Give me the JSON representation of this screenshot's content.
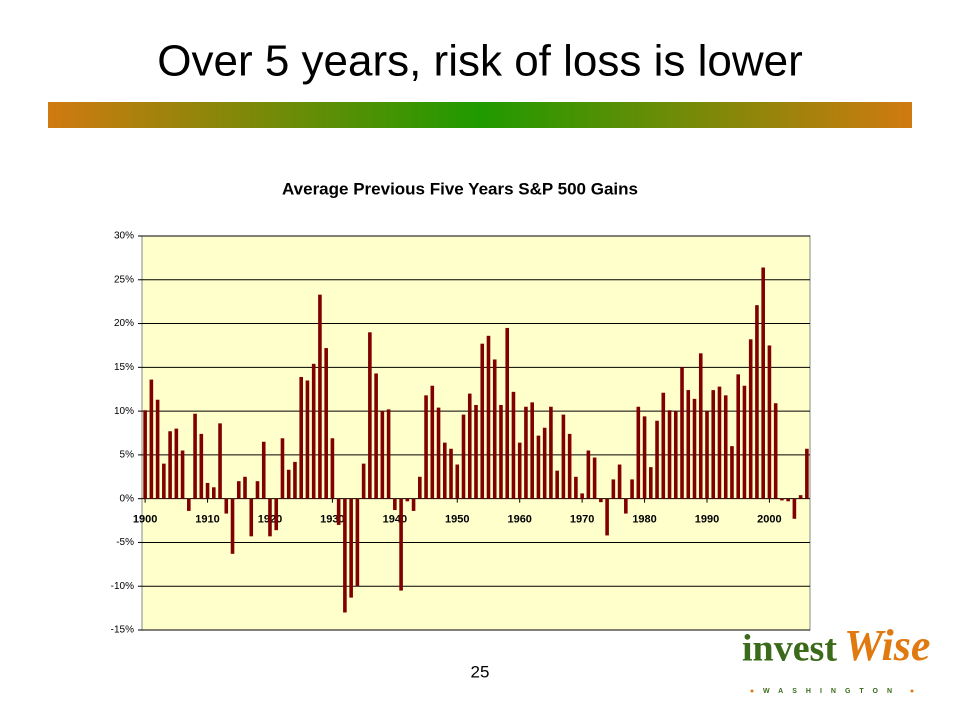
{
  "slide": {
    "title": "Over 5 years, risk of loss is lower",
    "page_number": "25",
    "logo": {
      "part1": "invest",
      "part2": "Wise",
      "tagline": "WASHINGTON"
    }
  },
  "chart_data": {
    "type": "bar",
    "title": "Average Previous Five Years S&P 500 Gains",
    "color": "#800000",
    "categories": [
      "1900",
      null,
      null,
      null,
      null,
      null,
      null,
      null,
      null,
      null,
      "1910",
      null,
      null,
      null,
      null,
      null,
      null,
      null,
      null,
      null,
      "1920",
      null,
      null,
      null,
      null,
      null,
      null,
      null,
      null,
      null,
      "1930",
      null,
      null,
      null,
      null,
      null,
      null,
      null,
      null,
      null,
      "1940",
      null,
      null,
      null,
      null,
      null,
      null,
      null,
      null,
      null,
      "1950",
      null,
      null,
      null,
      null,
      null,
      null,
      null,
      null,
      null,
      "1960",
      null,
      null,
      null,
      null,
      null,
      null,
      null,
      null,
      null,
      "1970",
      null,
      null,
      null,
      null,
      null,
      null,
      null,
      null,
      null,
      "1980",
      null,
      null,
      null,
      null,
      null,
      null,
      null,
      null,
      null,
      "1990",
      null,
      null,
      null,
      null,
      null,
      null,
      null,
      null,
      null,
      "2000",
      null,
      null,
      null,
      null,
      null,
      null
    ],
    "values": [
      10.1,
      13.6,
      11.3,
      4.0,
      7.7,
      8.0,
      5.5,
      -1.4,
      9.7,
      7.4,
      1.8,
      1.3,
      8.6,
      -1.7,
      -6.3,
      2.0,
      2.5,
      -4.3,
      2.0,
      6.5,
      -4.3,
      -3.6,
      6.9,
      3.3,
      4.2,
      13.9,
      13.5,
      15.4,
      23.3,
      17.2,
      6.9,
      -3.0,
      -13.0,
      -11.3,
      -10.0,
      4.0,
      19.0,
      14.3,
      10.0,
      10.2,
      -1.3,
      -10.5,
      -0.3,
      -1.4,
      2.5,
      11.8,
      12.9,
      10.4,
      6.4,
      5.7,
      3.9,
      9.6,
      12.0,
      10.7,
      17.7,
      18.6,
      15.9,
      10.7,
      19.5,
      12.2,
      6.4,
      10.5,
      11.0,
      7.2,
      8.1,
      10.5,
      3.2,
      9.6,
      7.4,
      2.5,
      0.6,
      5.5,
      4.7,
      -0.4,
      -4.2,
      2.2,
      3.9,
      -1.7,
      2.2,
      10.5,
      9.4,
      3.6,
      8.9,
      12.1,
      10.1,
      10.0,
      15.0,
      12.4,
      11.4,
      16.6,
      10.0,
      12.4,
      12.8,
      11.8,
      6.0,
      14.2,
      12.9,
      18.2,
      22.1,
      26.4,
      17.5,
      10.9,
      -0.2,
      -0.3,
      -2.3,
      0.4,
      5.7
    ],
    "ylim": [
      -15,
      30
    ],
    "yticks": [
      {
        "value": -15,
        "label": "-15%"
      },
      {
        "value": -10,
        "label": "-10%"
      },
      {
        "value": -5,
        "label": "-5%"
      },
      {
        "value": 0,
        "label": "0%"
      },
      {
        "value": 5,
        "label": "5%"
      },
      {
        "value": 10,
        "label": "10%"
      },
      {
        "value": 15,
        "label": "15%"
      },
      {
        "value": 20,
        "label": "20%"
      },
      {
        "value": 25,
        "label": "25%"
      },
      {
        "value": 30,
        "label": "30%"
      }
    ],
    "grid": true
  }
}
